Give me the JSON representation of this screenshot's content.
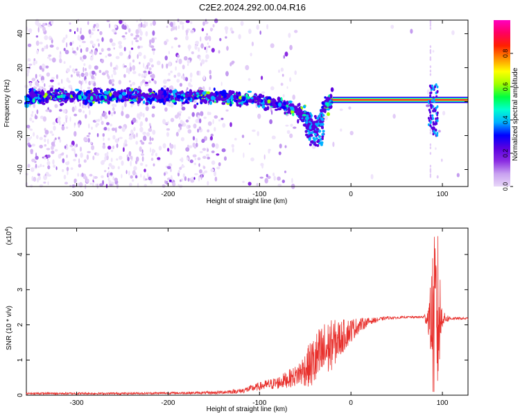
{
  "title": "C2E2.2024.292.00.04.R16",
  "chart_data": [
    {
      "type": "heatmap",
      "xlabel": "Height of straight line (km)",
      "ylabel": "Frequency (Hz)",
      "xlim": [
        -355,
        128
      ],
      "ylim": [
        -50,
        48
      ],
      "xticks": [
        "-300",
        "-200",
        "-100",
        "0",
        "100"
      ],
      "xtick_values": [
        -300,
        -200,
        -100,
        0,
        100
      ],
      "yticks": [
        "-40",
        "-20",
        "0",
        "20",
        "40"
      ],
      "ytick_values": [
        -40,
        -20,
        0,
        20,
        40
      ],
      "colorbar": {
        "label": "Normalized spectral amplitude",
        "range": [
          0,
          1
        ],
        "ticks": [
          "0.0",
          "0.2",
          "0.4",
          "0.6",
          "0.8"
        ],
        "tick_values": [
          0.0,
          0.2,
          0.4,
          0.6,
          0.8
        ],
        "colors": [
          "#e8d8f8",
          "#c8a0f0",
          "#8a2be2",
          "#5a00e0",
          "#0000ff",
          "#00b0ff",
          "#00ffd0",
          "#00ff40",
          "#a0ff00",
          "#ffff00",
          "#ff9000",
          "#ff2000",
          "#ff0060",
          "#ff00c0"
        ]
      },
      "ridge": [
        {
          "x": -350,
          "y": 3
        },
        {
          "x": -300,
          "y": 3
        },
        {
          "x": -250,
          "y": 3
        },
        {
          "x": -200,
          "y": 3
        },
        {
          "x": -150,
          "y": 3
        },
        {
          "x": -120,
          "y": 2
        },
        {
          "x": -100,
          "y": 1
        },
        {
          "x": -80,
          "y": -2
        },
        {
          "x": -60,
          "y": -5
        },
        {
          "x": -45,
          "y": -10
        },
        {
          "x": -38,
          "y": -16
        },
        {
          "x": -30,
          "y": -4
        },
        {
          "x": -20,
          "y": 1
        },
        {
          "x": 0,
          "y": 1
        },
        {
          "x": 50,
          "y": 1
        },
        {
          "x": 90,
          "y": 1
        },
        {
          "x": 128,
          "y": 1
        }
      ]
    },
    {
      "type": "line",
      "xlabel": "Height of straight line (km)",
      "ylabel": "SNR (10 * v/v)",
      "scale_label": "(x10",
      "scale_exponent": "4",
      "xlim": [
        -355,
        128
      ],
      "ylim": [
        0,
        4.75
      ],
      "xticks": [
        "-300",
        "-200",
        "-100",
        "0",
        "100"
      ],
      "xtick_values": [
        -300,
        -200,
        -100,
        0,
        100
      ],
      "yticks": [
        "0",
        "1",
        "2",
        "3",
        "4"
      ],
      "ytick_values": [
        0,
        1,
        2,
        3,
        4
      ],
      "color": "#e8302c",
      "series": [
        {
          "x": [
            -355,
            -300,
            -250,
            -200,
            -150,
            -120,
            -100,
            -80,
            -60,
            -50,
            -40,
            -30,
            -20,
            -10,
            0,
            10,
            20,
            30,
            40,
            50,
            60,
            70,
            80,
            86,
            90,
            95,
            100,
            110,
            128
          ],
          "y": [
            0.05,
            0.05,
            0.05,
            0.06,
            0.07,
            0.12,
            0.25,
            0.35,
            0.55,
            0.75,
            0.95,
            1.2,
            1.45,
            1.65,
            1.85,
            2.0,
            2.1,
            2.15,
            2.2,
            2.2,
            2.22,
            2.22,
            2.22,
            2.2,
            2.1,
            2.2,
            2.18,
            2.18,
            2.18
          ],
          "noise": [
            0.03,
            0.03,
            0.03,
            0.03,
            0.04,
            0.07,
            0.12,
            0.18,
            0.3,
            0.5,
            0.8,
            0.9,
            0.7,
            0.5,
            0.35,
            0.2,
            0.1,
            0.06,
            0.04,
            0.03,
            0.03,
            0.03,
            0.04,
            0.6,
            2.4,
            2.5,
            0.2,
            0.04,
            0.03
          ]
        }
      ]
    }
  ]
}
